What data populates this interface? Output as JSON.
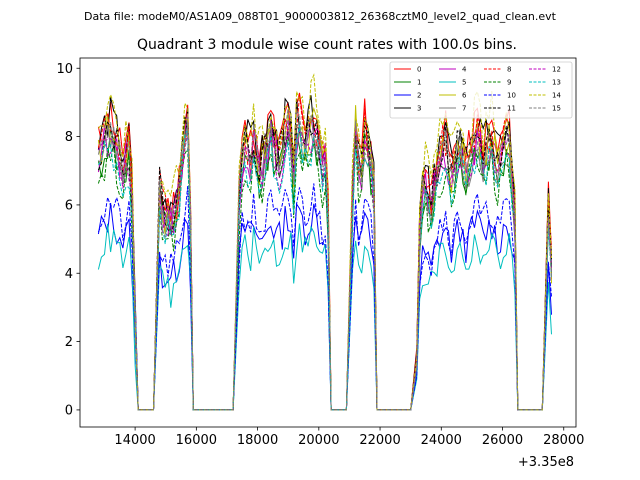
{
  "chart_data": {
    "type": "line",
    "file_label": "Data file: modeM0/AS1A09_088T01_9000003812_26368cztM0_level2_quad_clean.evt",
    "title": "Quadrant 3 module wise count rates with 100.0s bins.",
    "xlabel": "",
    "ylabel": "",
    "x_offset_label": "+3.35e8",
    "xlim": [
      12200,
      28400
    ],
    "ylim": [
      -0.5,
      10.3
    ],
    "x_ticks": [
      14000,
      16000,
      18000,
      20000,
      22000,
      24000,
      26000,
      28000
    ],
    "x_tick_labels": [
      "14000",
      "16000",
      "18000",
      "20000",
      "22000",
      "24000",
      "26000",
      "28000"
    ],
    "y_ticks": [
      0,
      2,
      4,
      6,
      8,
      10
    ],
    "y_tick_labels": [
      "0",
      "2",
      "4",
      "6",
      "8",
      "10"
    ],
    "legend_position": "top-right",
    "segments": [
      {
        "start": 12800,
        "end": 14100,
        "base_shape": [
          7.8,
          8.1,
          8.4,
          8.6,
          8.7,
          8.5,
          8.2,
          7.9,
          7.6,
          7.8,
          8.0,
          6.5,
          3.0,
          0.0
        ]
      },
      {
        "start": 14800,
        "end": 15900,
        "base_shape": [
          6.8,
          6.2,
          5.9,
          6.1,
          5.8,
          6.0,
          6.4,
          6.8,
          7.8,
          8.6,
          9.0,
          6.0,
          0.0
        ]
      },
      {
        "start": 17400,
        "end": 20400,
        "base_shape": [
          6.5,
          7.8,
          8.2,
          8.0,
          7.8,
          8.4,
          7.9,
          7.5,
          7.6,
          7.9,
          8.3,
          8.6,
          8.2,
          7.9,
          7.7,
          8.0,
          8.6,
          8.8,
          8.3,
          7.0,
          8.6,
          8.9,
          8.5,
          8.2,
          8.3,
          8.7,
          8.9,
          8.5,
          8.1,
          7.5,
          7.8,
          6.0,
          0.0
        ]
      },
      {
        "start": 21100,
        "end": 21900,
        "base_shape": [
          6.5,
          8.8,
          7.6,
          7.4,
          8.6,
          8.1,
          7.6,
          6.8,
          0.0
        ]
      },
      {
        "start": 23200,
        "end": 26500,
        "base_shape": [
          2.0,
          5.5,
          6.8,
          7.0,
          6.6,
          6.2,
          7.0,
          7.4,
          7.8,
          8.0,
          8.2,
          7.6,
          7.2,
          7.5,
          7.9,
          8.1,
          7.8,
          7.4,
          7.6,
          8.0,
          8.3,
          8.5,
          8.1,
          7.8,
          8.0,
          8.2,
          8.4,
          7.9,
          7.6,
          7.8,
          8.1,
          8.4,
          8.3,
          7.2,
          6.0,
          0.0
        ]
      },
      {
        "start": 27500,
        "end": 27600,
        "base_shape": [
          6.5,
          4.5
        ]
      }
    ],
    "series": [
      {
        "name": "0",
        "color": "#ff0000",
        "dash": "solid",
        "scale": 1.0,
        "seed": 11
      },
      {
        "name": "1",
        "color": "#008000",
        "dash": "solid",
        "scale": 0.9,
        "seed": 12
      },
      {
        "name": "2",
        "color": "#0000ff",
        "dash": "solid",
        "scale": 0.65,
        "seed": 13
      },
      {
        "name": "3",
        "color": "#000000",
        "dash": "solid",
        "scale": 0.99,
        "seed": 14
      },
      {
        "name": "4",
        "color": "#bf00bf",
        "dash": "solid",
        "scale": 0.93,
        "seed": 15
      },
      {
        "name": "5",
        "color": "#00bfbf",
        "dash": "solid",
        "scale": 0.58,
        "seed": 16
      },
      {
        "name": "6",
        "color": "#bfbf00",
        "dash": "solid",
        "scale": 0.95,
        "seed": 17
      },
      {
        "name": "7",
        "color": "#7f7f7f",
        "dash": "solid",
        "scale": 0.92,
        "seed": 18
      },
      {
        "name": "8",
        "color": "#ff0000",
        "dash": "dashed",
        "scale": 0.97,
        "seed": 19
      },
      {
        "name": "9",
        "color": "#008000",
        "dash": "dashed",
        "scale": 0.86,
        "seed": 20
      },
      {
        "name": "10",
        "color": "#0000ff",
        "dash": "dashed",
        "scale": 0.7,
        "seed": 21
      },
      {
        "name": "11",
        "color": "#000000",
        "dash": "dashed",
        "scale": 0.96,
        "seed": 22
      },
      {
        "name": "12",
        "color": "#bf00bf",
        "dash": "dashed",
        "scale": 0.91,
        "seed": 23
      },
      {
        "name": "13",
        "color": "#00bfbf",
        "dash": "dashed",
        "scale": 0.88,
        "seed": 24
      },
      {
        "name": "14",
        "color": "#bfbf00",
        "dash": "dashed",
        "scale": 1.04,
        "seed": 25
      },
      {
        "name": "15",
        "color": "#7f7f7f",
        "dash": "dashed",
        "scale": 0.94,
        "seed": 26
      }
    ]
  }
}
